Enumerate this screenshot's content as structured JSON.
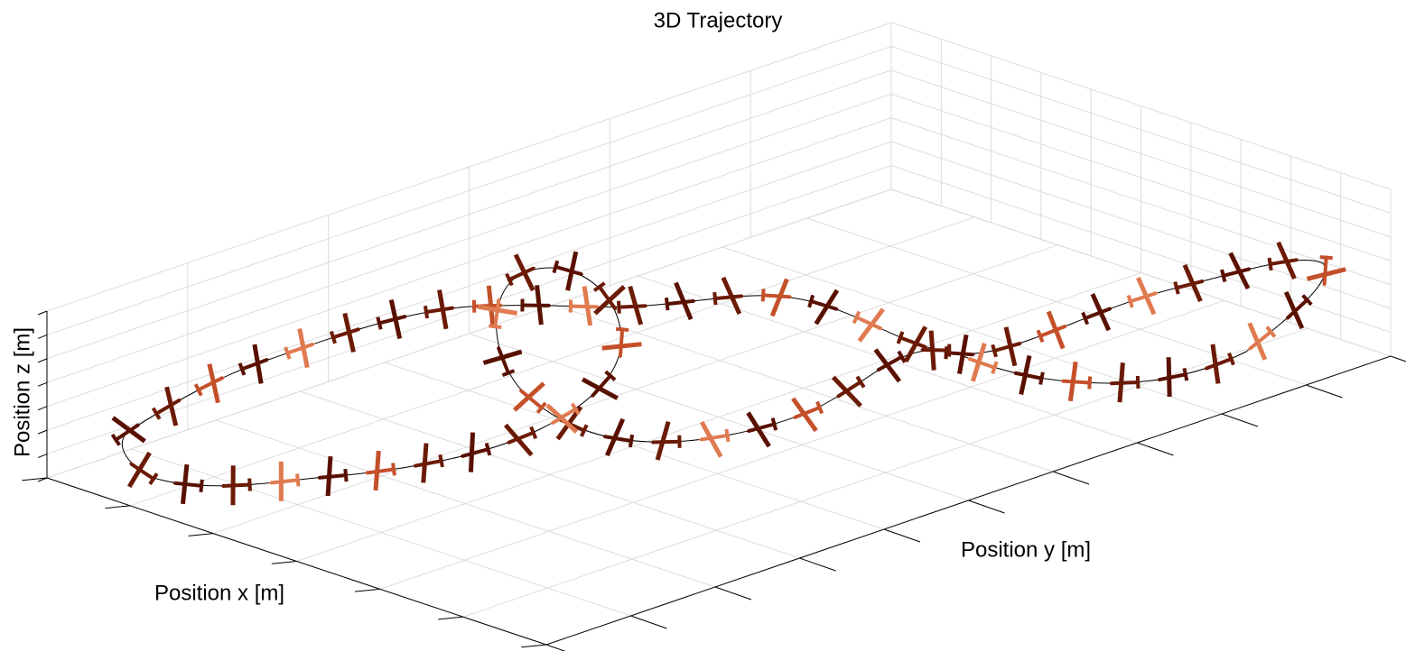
{
  "chart_data": {
    "type": "line3d",
    "title": "3D Trajectory",
    "xlabel": "Position x [m]",
    "ylabel": "Position y [m]",
    "zlabel": "Position z [m]"
  }
}
